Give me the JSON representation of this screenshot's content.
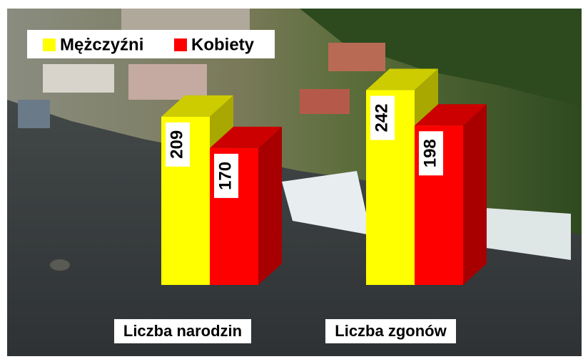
{
  "chart_data": {
    "type": "bar3d",
    "categories": [
      "Liczba narodzin",
      "Liczba zgonów"
    ],
    "series": [
      {
        "name": "Mężczyźni",
        "color": "#ffff00",
        "values": [
          209,
          242
        ]
      },
      {
        "name": "Kobiety",
        "color": "#ff0000",
        "values": [
          170,
          198
        ]
      }
    ]
  }
}
